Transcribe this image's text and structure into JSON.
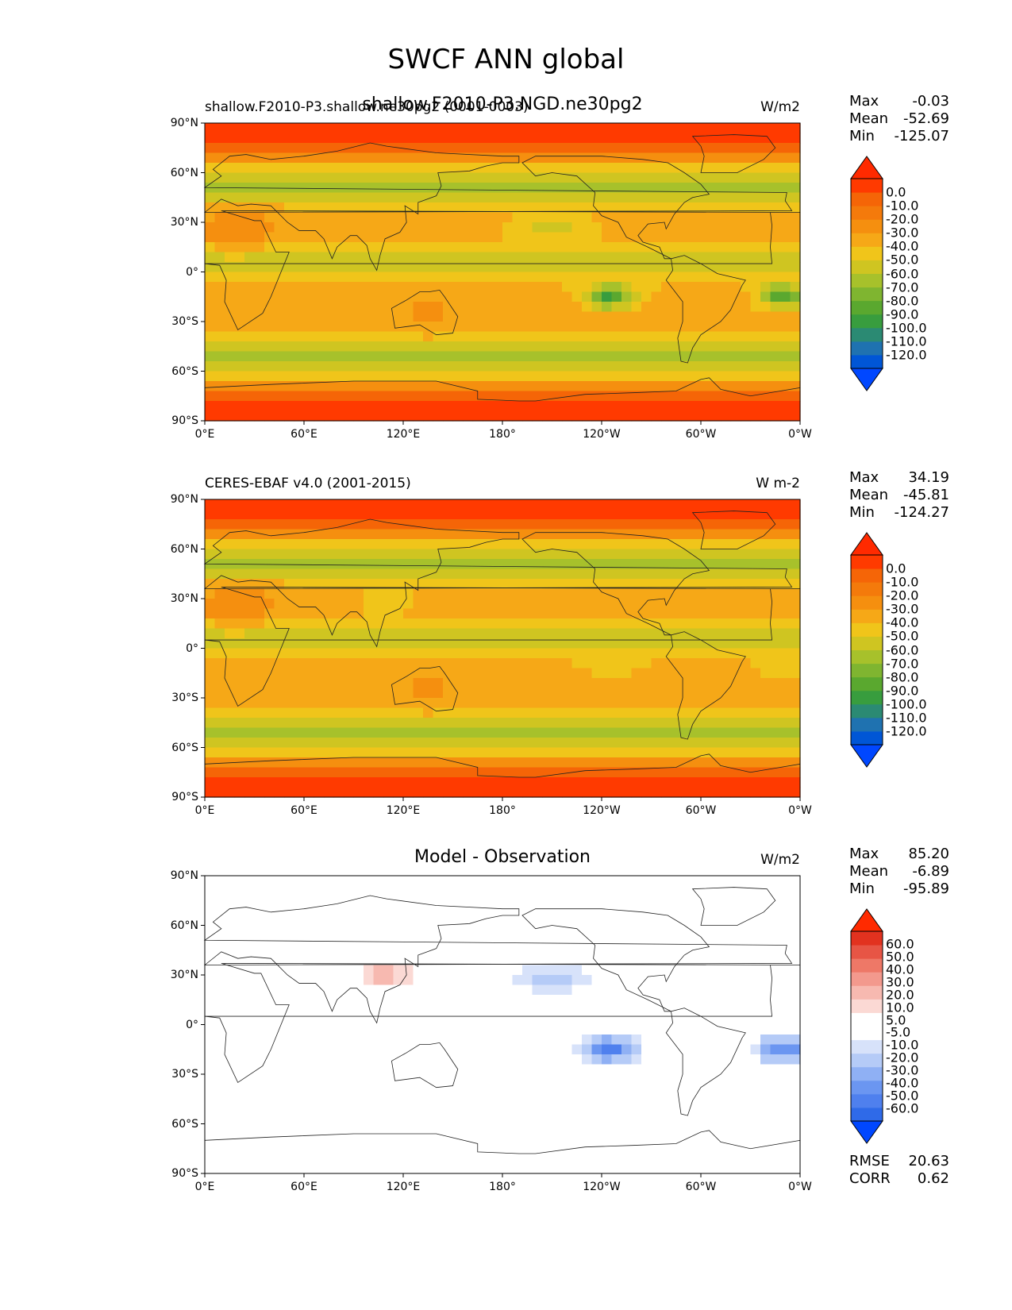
{
  "figure": {
    "title": "SWCF ANN global"
  },
  "colors": {
    "diverging_bar": [
      "#0047ff",
      "#2f6ae8",
      "#4f80ee",
      "#6b96f1",
      "#8fb0f4",
      "#b5cbf7",
      "#d7e2fa",
      "#ffffff",
      "#ffffff",
      "#fbd9d4",
      "#f7b9b0",
      "#f3998d",
      "#ee7867",
      "#e75545",
      "#e2321f",
      "#ff2a00"
    ],
    "sequential_bar": [
      "#0047ff",
      "#0056d6",
      "#1f72b0",
      "#2b8a73",
      "#389d3e",
      "#5aa82f",
      "#7fb530",
      "#a7c12b",
      "#cfc521",
      "#f0c51a",
      "#f6a817",
      "#f58f0f",
      "#f47a0b",
      "#f56507",
      "#ff3a00",
      "#ff2a00"
    ]
  },
  "panels": [
    {
      "title_left": "shallow.F2010-P3.shallow.ne30pg2 (0001-0003)",
      "title_center": "shallow.F2010-P3.NGD.ne30pg2",
      "units": "W/m2",
      "stats": [
        {
          "label": "Max",
          "value": "-0.03"
        },
        {
          "label": "Mean",
          "value": "-52.69"
        },
        {
          "label": "Min",
          "value": "-125.07"
        }
      ]
    },
    {
      "title_left": "CERES-EBAF v4.0 (2001-2015)",
      "title_center": "",
      "units": "W m-2",
      "stats": [
        {
          "label": "Max",
          "value": "34.19"
        },
        {
          "label": "Mean",
          "value": "-45.81"
        },
        {
          "label": "Min",
          "value": "-124.27"
        }
      ]
    },
    {
      "title_left": "",
      "title_center": "Model - Observation",
      "units": "W/m2",
      "stats": [
        {
          "label": "Max",
          "value": "85.20"
        },
        {
          "label": "Mean",
          "value": "-6.89"
        },
        {
          "label": "Min",
          "value": "-95.89"
        }
      ],
      "extra_stats": [
        {
          "label": "RMSE",
          "value": "20.63"
        },
        {
          "label": "CORR",
          "value": "0.62"
        }
      ]
    }
  ],
  "chart_data": [
    {
      "type": "heatmap",
      "title": "shallow.F2010-P3.NGD.ne30pg2",
      "subtitle": "shallow.F2010-P3.shallow.ne30pg2 (0001-0003)",
      "units": "W/m2",
      "x_ticks": [
        "0°E",
        "60°E",
        "120°E",
        "180°",
        "120°W",
        "60°W",
        "0°W"
      ],
      "y_ticks": [
        "90°N",
        "60°N",
        "30°N",
        "0°",
        "30°S",
        "60°S",
        "90°S"
      ],
      "colorbar_levels": [
        "0.0",
        "-10.0",
        "-20.0",
        "-30.0",
        "-40.0",
        "-50.0",
        "-60.0",
        "-70.0",
        "-80.0",
        "-90.0",
        "-100.0",
        "-110.0",
        "-120.0"
      ],
      "max": -0.03,
      "mean": -52.69,
      "min": -125.07
    },
    {
      "type": "heatmap",
      "title": "CERES-EBAF v4.0 (2001-2015)",
      "units": "W m-2",
      "x_ticks": [
        "0°E",
        "60°E",
        "120°E",
        "180°",
        "120°W",
        "60°W",
        "0°W"
      ],
      "y_ticks": [
        "90°N",
        "60°N",
        "30°N",
        "0°",
        "30°S",
        "60°S",
        "90°S"
      ],
      "colorbar_levels": [
        "0.0",
        "-10.0",
        "-20.0",
        "-30.0",
        "-40.0",
        "-50.0",
        "-60.0",
        "-70.0",
        "-80.0",
        "-90.0",
        "-100.0",
        "-110.0",
        "-120.0"
      ],
      "max": 34.19,
      "mean": -45.81,
      "min": -124.27
    },
    {
      "type": "heatmap",
      "title": "Model - Observation",
      "units": "W/m2",
      "x_ticks": [
        "0°E",
        "60°E",
        "120°E",
        "180°",
        "120°W",
        "60°W",
        "0°W"
      ],
      "y_ticks": [
        "90°N",
        "60°N",
        "30°N",
        "0°",
        "30°S",
        "60°S",
        "90°S"
      ],
      "colorbar_levels": [
        "60.0",
        "50.0",
        "40.0",
        "30.0",
        "20.0",
        "10.0",
        "5.0",
        "-5.0",
        "-10.0",
        "-20.0",
        "-30.0",
        "-40.0",
        "-50.0",
        "-60.0"
      ],
      "max": 85.2,
      "mean": -6.89,
      "min": -95.89,
      "rmse": 20.63,
      "corr": 0.62
    }
  ]
}
